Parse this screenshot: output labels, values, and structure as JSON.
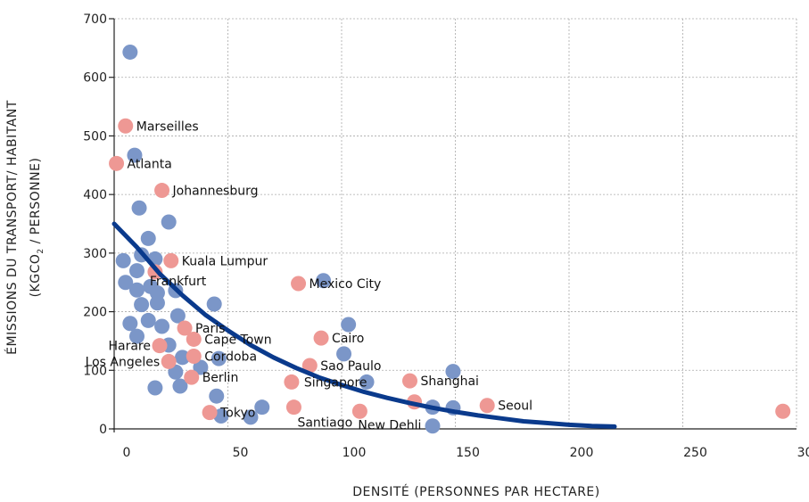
{
  "chart_data": {
    "type": "scatter",
    "xlabel": "DENSITÉ (PERSONNES PAR HECTARE)",
    "ylabel_line1": "ÉMISSIONS DU TRANSPORT/ HABITANT",
    "ylabel_line2_pre": "(KGCO",
    "ylabel_line2_sub": "2",
    "ylabel_line2_post": " / PERSONNE)",
    "xlim": [
      0,
      300
    ],
    "ylim": [
      0,
      700
    ],
    "x_ticks": [
      0,
      50,
      100,
      150,
      200,
      250,
      300
    ],
    "y_ticks": [
      0,
      100,
      200,
      300,
      400,
      500,
      600,
      700
    ],
    "grid": true,
    "colors": {
      "unlabeled": "#7b96c8",
      "labeled": "#ee9894",
      "trend": "#0a3a8c"
    },
    "series": [
      {
        "points": [
          {
            "x": 7,
            "y": 643
          },
          {
            "x": 9,
            "y": 467
          },
          {
            "x": 11,
            "y": 377
          },
          {
            "x": 24,
            "y": 353
          },
          {
            "x": 15,
            "y": 325
          },
          {
            "x": 4,
            "y": 287
          },
          {
            "x": 12,
            "y": 297
          },
          {
            "x": 18,
            "y": 290
          },
          {
            "x": 10,
            "y": 270
          },
          {
            "x": 5,
            "y": 250
          },
          {
            "x": 10,
            "y": 237
          },
          {
            "x": 16,
            "y": 243
          },
          {
            "x": 27,
            "y": 236
          },
          {
            "x": 19,
            "y": 232
          },
          {
            "x": 12,
            "y": 212
          },
          {
            "x": 19,
            "y": 215
          },
          {
            "x": 44,
            "y": 213
          },
          {
            "x": 28,
            "y": 193
          },
          {
            "x": 7,
            "y": 180
          },
          {
            "x": 15,
            "y": 185
          },
          {
            "x": 21,
            "y": 175
          },
          {
            "x": 10,
            "y": 158
          },
          {
            "x": 24,
            "y": 143
          },
          {
            "x": 30,
            "y": 122
          },
          {
            "x": 46,
            "y": 120
          },
          {
            "x": 27,
            "y": 97
          },
          {
            "x": 38,
            "y": 105
          },
          {
            "x": 29,
            "y": 73
          },
          {
            "x": 18,
            "y": 70
          },
          {
            "x": 45,
            "y": 56
          },
          {
            "x": 47,
            "y": 22
          },
          {
            "x": 60,
            "y": 20
          },
          {
            "x": 65,
            "y": 37
          },
          {
            "x": 92,
            "y": 253
          },
          {
            "x": 103,
            "y": 178
          },
          {
            "x": 101,
            "y": 128
          },
          {
            "x": 111,
            "y": 80
          },
          {
            "x": 149,
            "y": 98
          },
          {
            "x": 140,
            "y": 37
          },
          {
            "x": 149,
            "y": 36
          },
          {
            "x": 140,
            "y": 5
          }
        ]
      },
      {
        "points": [
          {
            "x": 5,
            "y": 517,
            "label": "Marseilles"
          },
          {
            "x": 1,
            "y": 453,
            "label": "Atlanta"
          },
          {
            "x": 21,
            "y": 407,
            "label": "Johannesburg"
          },
          {
            "x": 25,
            "y": 287,
            "label": "Kuala Lumpur"
          },
          {
            "x": 18,
            "y": 268,
            "label": "Frankfurt"
          },
          {
            "x": 81,
            "y": 248,
            "label": "Mexico City"
          },
          {
            "x": 31,
            "y": 172,
            "label": "Paris"
          },
          {
            "x": 35,
            "y": 153,
            "label": "Cape Town"
          },
          {
            "x": 91,
            "y": 155,
            "label": "Cairo"
          },
          {
            "x": 20,
            "y": 142,
            "label": "Harare"
          },
          {
            "x": 35,
            "y": 124,
            "label": "Cordoba"
          },
          {
            "x": 24,
            "y": 115,
            "label": "Los Angeles"
          },
          {
            "x": 86,
            "y": 108,
            "label": "Sao Paulo"
          },
          {
            "x": 34,
            "y": 88,
            "label": "Berlin"
          },
          {
            "x": 78,
            "y": 80,
            "label": "Singapore"
          },
          {
            "x": 130,
            "y": 82,
            "label": "Shanghai"
          },
          {
            "x": 132,
            "y": 46
          },
          {
            "x": 164,
            "y": 40,
            "label": "Seoul"
          },
          {
            "x": 42,
            "y": 28,
            "label": "Tokyo"
          },
          {
            "x": 79,
            "y": 37,
            "label": "Santiago"
          },
          {
            "x": 108,
            "y": 30,
            "label": "New Dehli"
          },
          {
            "x": 294,
            "y": 30
          }
        ]
      }
    ],
    "trend_curve": {
      "x": [
        0,
        10,
        20,
        30,
        40,
        50,
        60,
        70,
        80,
        90,
        100,
        110,
        120,
        130,
        140,
        150,
        160,
        170,
        180,
        190,
        200,
        210,
        220
      ],
      "y": [
        350,
        310,
        265,
        228,
        195,
        168,
        143,
        122,
        104,
        88,
        75,
        63,
        53,
        44,
        36,
        29,
        23,
        18,
        13,
        10,
        7,
        5,
        4
      ]
    }
  }
}
